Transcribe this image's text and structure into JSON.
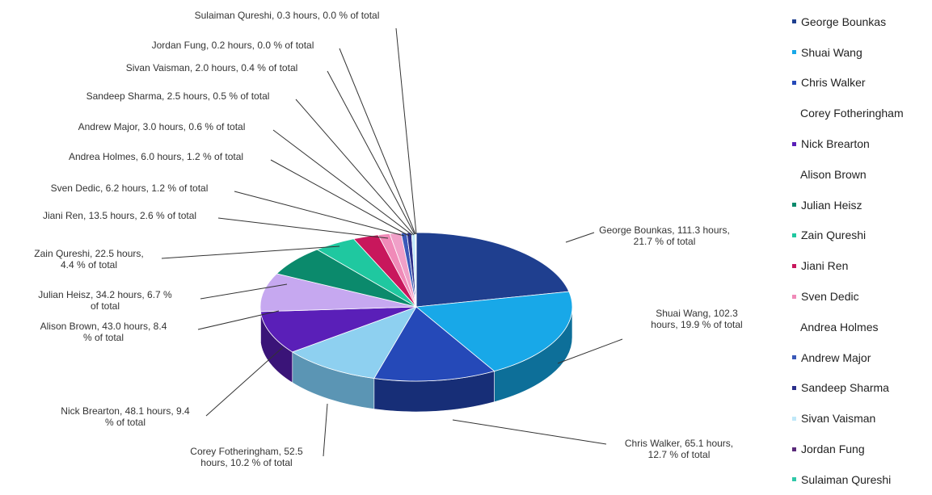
{
  "chart_data": {
    "type": "pie",
    "title": "",
    "unit": "hours",
    "slices": [
      {
        "name": "George Bounkas",
        "value": 111.3,
        "label": "George Bounkas,  111.3 hours,\n21.7 % of total",
        "color": "#1f3f8f",
        "side": "#122660",
        "legend_swatch": true
      },
      {
        "name": "Shuai Wang",
        "value": 102.3,
        "label": "Shuai Wang,  102.3\nhours,  19.9 % of total",
        "color": "#18a8e8",
        "side": "#0d6f99",
        "legend_swatch": true
      },
      {
        "name": "Chris Walker",
        "value": 65.1,
        "label": "Chris Walker,  65.1 hours,\n12.7 % of total",
        "color": "#2549b8",
        "side": "#172e77",
        "legend_swatch": true
      },
      {
        "name": "Corey Fotheringham",
        "value": 52.5,
        "label": "Corey Fotheringham,  52.5\nhours,  10.2 % of total",
        "color": "#8ed0f0",
        "side": "#5b95b4",
        "legend_swatch": false
      },
      {
        "name": "Nick Brearton",
        "value": 48.1,
        "label": "Nick Brearton,  48.1 hours,  9.4\n% of total",
        "color": "#5a1fb8",
        "side": "#3a1478",
        "legend_swatch": true
      },
      {
        "name": "Alison Brown",
        "value": 43.0,
        "label": "Alison Brown,  43.0 hours,  8.4\n% of total",
        "color": "#c6a8f0",
        "side": "#8a70b0",
        "legend_swatch": false
      },
      {
        "name": "Julian Heisz",
        "value": 34.2,
        "label": "Julian Heisz,  34.2 hours,  6.7 %\nof total",
        "color": "#0b8a6c",
        "side": "#065a46",
        "legend_swatch": true
      },
      {
        "name": "Zain Qureshi",
        "value": 22.5,
        "label": "Zain Qureshi,  22.5 hours,\n4.4 % of total",
        "color": "#1fc8a0",
        "side": "#14856a",
        "legend_swatch": true
      },
      {
        "name": "Jiani Ren",
        "value": 13.5,
        "label": "Jiani Ren,  13.5 hours,  2.6 % of total",
        "color": "#c8175c",
        "side": "#85103d",
        "legend_swatch": true
      },
      {
        "name": "Sven Dedic",
        "value": 6.2,
        "label": "Sven Dedic,  6.2 hours,  1.2 % of total",
        "color": "#f08ab8",
        "side": "#a85e80",
        "legend_swatch": true
      },
      {
        "name": "Andrea Holmes",
        "value": 6.0,
        "label": "Andrea Holmes,  6.0 hours,  1.2 % of total",
        "color": "#f0a0c8",
        "side": "#a86e8c",
        "legend_swatch": false
      },
      {
        "name": "Andrew Major",
        "value": 3.0,
        "label": "Andrew Major,  3.0 hours,  0.6 % of total",
        "color": "#3a58b8",
        "side": "#273c7e",
        "legend_swatch": true
      },
      {
        "name": "Sandeep Sharma",
        "value": 2.5,
        "label": "Sandeep Sharma,  2.5 hours,  0.5 % of total",
        "color": "#2a2f8a",
        "side": "#1c1f5c",
        "legend_swatch": true
      },
      {
        "name": "Sivan Vaisman",
        "value": 2.0,
        "label": "Sivan Vaisman,  2.0 hours,  0.4 % of total",
        "color": "#bfe8f8",
        "side": "#88aebb",
        "legend_swatch": true
      },
      {
        "name": "Jordan Fung",
        "value": 0.2,
        "label": "Jordan Fung,  0.2 hours,  0.0 % of total",
        "color": "#5a2a7a",
        "side": "#3c1c52",
        "legend_swatch": true
      },
      {
        "name": "Sulaiman Qureshi",
        "value": 0.3,
        "label": "Sulaiman Qureshi,  0.3 hours,  0.0 % of total",
        "color": "#2fc8a8",
        "side": "#208a74",
        "legend_swatch": true
      }
    ],
    "legend_placement": "right"
  }
}
